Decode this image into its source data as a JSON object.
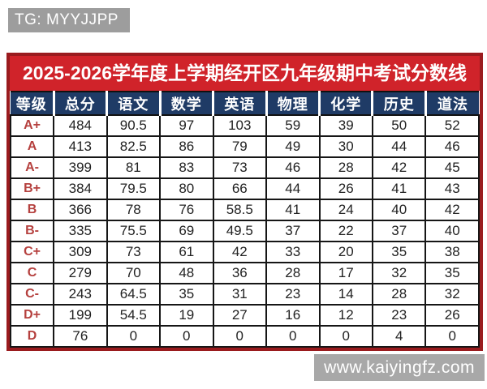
{
  "badge": {
    "text": "TG: MYYJJPP"
  },
  "watermark": {
    "text": "www.kaiyingfz.com"
  },
  "colors": {
    "title_background": "#d0232a",
    "outer_border": "#9a1b1e",
    "header_background": "#1f3b66",
    "grade_text": "#b5403e",
    "cell_border": "#161616",
    "badge_background": "#9d9d9d",
    "watermark_background": "#a8a8a8"
  },
  "chart_data": {
    "type": "table",
    "title": "2025-2026学年度上学期经开区九年级期中考试分数线",
    "columns": [
      "等级",
      "总分",
      "语文",
      "数学",
      "英语",
      "物理",
      "化学",
      "历史",
      "道法"
    ],
    "rows": [
      [
        "A+",
        484,
        90.5,
        97,
        103,
        59,
        39,
        50,
        52
      ],
      [
        "A",
        413,
        82.5,
        86,
        79,
        49,
        30,
        44,
        46
      ],
      [
        "A-",
        399,
        81,
        83,
        73,
        46,
        28,
        42,
        45
      ],
      [
        "B+",
        384,
        79.5,
        80,
        66,
        44,
        26,
        41,
        43
      ],
      [
        "B",
        366,
        78,
        76,
        58.5,
        41,
        24,
        40,
        42
      ],
      [
        "B-",
        335,
        75.5,
        69,
        49.5,
        37,
        22,
        37,
        40
      ],
      [
        "C+",
        309,
        73,
        61,
        42,
        33,
        20,
        35,
        38
      ],
      [
        "C",
        279,
        70,
        48,
        36,
        28,
        17,
        32,
        35
      ],
      [
        "C-",
        243,
        64.5,
        35,
        31,
        23,
        14,
        28,
        32
      ],
      [
        "D+",
        199,
        54.5,
        19,
        27,
        16,
        12,
        23,
        26
      ],
      [
        "D",
        76,
        0,
        0,
        0,
        0,
        0,
        4,
        0
      ]
    ]
  }
}
